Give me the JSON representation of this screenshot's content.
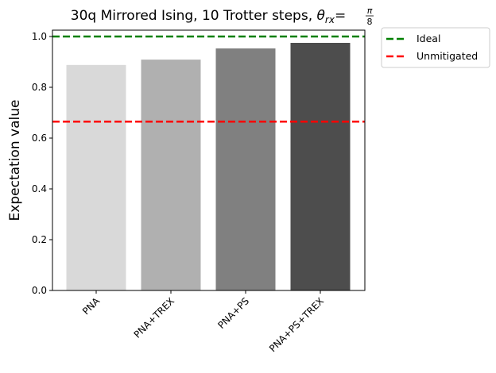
{
  "chart_data": {
    "type": "bar",
    "title": "30q Mirrored Ising, 10 Trotter steps, ",
    "title_math": {
      "symbol": "θ",
      "subscript": "rx",
      "equals": "=",
      "numerator": "π",
      "denominator": "8"
    },
    "xlabel": "",
    "ylabel": "Expectation value",
    "categories": [
      "PNA",
      "PNA+TREX",
      "PNA+PS",
      "PNA+PS+TREX"
    ],
    "values": [
      0.888,
      0.909,
      0.953,
      0.975
    ],
    "bar_colors": [
      "#d9d9d9",
      "#b0b0b0",
      "#808080",
      "#4d4d4d"
    ],
    "ylim": [
      0,
      1.025
    ],
    "yticks": [
      0.0,
      0.2,
      0.4,
      0.6,
      0.8,
      1.0
    ],
    "ytick_labels": [
      "0.0",
      "0.2",
      "0.4",
      "0.6",
      "0.8",
      "1.0"
    ],
    "grid": false,
    "hlines": [
      {
        "name": "Ideal",
        "y": 1.0,
        "color": "#008000",
        "style": "dashed"
      },
      {
        "name": "Unmitigated",
        "y": 0.665,
        "color": "#ff0000",
        "style": "dashed"
      }
    ],
    "legend_placement": "outside-top-right"
  }
}
